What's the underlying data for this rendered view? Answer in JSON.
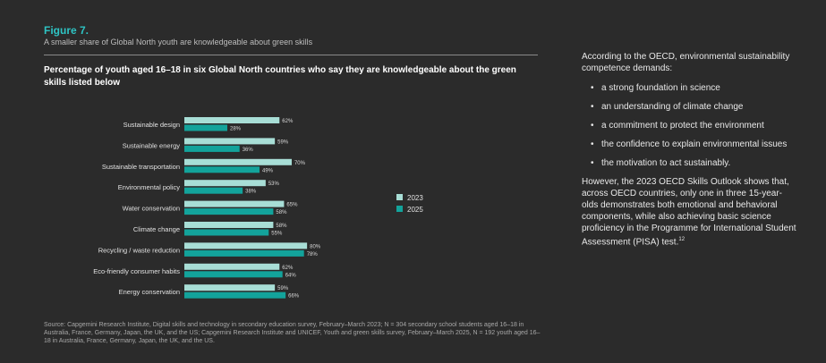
{
  "figure": {
    "label": "Figure 7.",
    "subtitle": "A smaller share of Global North youth are knowledgeable about green skills"
  },
  "chart_data": {
    "type": "bar",
    "orientation": "horizontal",
    "title": "Percentage of youth aged 16–18 in six Global North countries who say they are knowledgeable about the green skills listed below",
    "categories": [
      "Sustainable design",
      "Sustainable energy",
      "Sustainable transportation",
      "Environmental policy",
      "Water conservation",
      "Climate change",
      "Recycling / waste reduction",
      "Eco-friendly consumer habits",
      "Energy conservation"
    ],
    "series": [
      {
        "name": "2023",
        "values": [
          62,
          59,
          70,
          53,
          65,
          58,
          80,
          62,
          59
        ],
        "color": "#a8ded6"
      },
      {
        "name": "2025",
        "values": [
          28,
          36,
          49,
          38,
          58,
          55,
          78,
          64,
          66
        ],
        "color": "#13a39b"
      }
    ],
    "value_suffix": "%",
    "xlim": [
      0,
      100
    ],
    "grid": false,
    "legend_position": "right"
  },
  "source": "Source: Capgemini Research Institute, Digital skills and technology in secondary education survey, February–March 2023; N = 304 secondary school students aged 16–18 in Australia, France, Germany, Japan, the UK, and the US; Capgemini Research Institute and UNICEF, Youth and green skills survey, February–March 2025, N = 192 youth aged 16–18 in Australia, France, Germany, Japan, the UK, and the US.",
  "sidebar": {
    "intro": "According to the OECD, environmental sustainability competence demands:",
    "bullets": [
      "a strong foundation in science",
      "an understanding of climate change",
      "a commitment to protect the environment",
      "the confidence to explain environmental issues",
      "the motivation to act sustainably."
    ],
    "closing": "However, the 2023 OECD Skills Outlook shows that, across OECD countries, only one in three 15-year-olds demonstrates both emotional and behavioral components, while also achieving basic science proficiency in the Programme for International Student Assessment (PISA) test.",
    "footnote": "12"
  }
}
